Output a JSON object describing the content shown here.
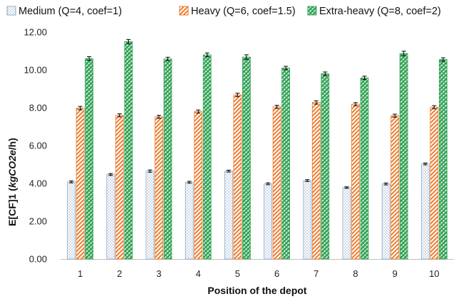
{
  "chart_data": {
    "type": "bar",
    "title": "",
    "xlabel": "Position of the depot",
    "ylabel": {
      "prefix": "E[CF]1 (",
      "italic": "kgCO2e",
      "suffix": "/h)"
    },
    "categories": [
      "1",
      "2",
      "3",
      "4",
      "5",
      "6",
      "7",
      "8",
      "9",
      "10"
    ],
    "ylim": [
      0,
      12
    ],
    "yticks": [
      "0.00",
      "2.00",
      "4.00",
      "6.00",
      "8.00",
      "10.00",
      "12.00"
    ],
    "grid": false,
    "legend_position": "top",
    "error_bars": true,
    "series": [
      {
        "name": "Medium (Q=4, coef=1)",
        "pattern": "dots",
        "color": "#8ea9c9",
        "values": [
          4.08,
          4.47,
          4.65,
          4.06,
          4.65,
          3.98,
          4.15,
          3.78,
          3.97,
          5.03
        ],
        "errors": [
          0.05,
          0.05,
          0.06,
          0.05,
          0.05,
          0.05,
          0.05,
          0.04,
          0.05,
          0.05
        ]
      },
      {
        "name": "Heavy (Q=6, coef=1.5)",
        "pattern": "diagonal",
        "color": "#ed7d31",
        "values": [
          7.98,
          7.6,
          7.52,
          7.8,
          8.68,
          8.05,
          8.28,
          8.19,
          7.58,
          8.03
        ],
        "errors": [
          0.09,
          0.08,
          0.08,
          0.08,
          0.09,
          0.08,
          0.09,
          0.08,
          0.08,
          0.08
        ]
      },
      {
        "name": "Extra-heavy (Q=8, coef=2)",
        "pattern": "crosshatch",
        "color": "#3aaa5c",
        "values": [
          10.6,
          11.5,
          10.58,
          10.8,
          10.68,
          10.1,
          9.8,
          9.58,
          10.87,
          10.55
        ],
        "errors": [
          0.1,
          0.11,
          0.09,
          0.1,
          0.12,
          0.09,
          0.09,
          0.09,
          0.12,
          0.09
        ]
      }
    ]
  }
}
